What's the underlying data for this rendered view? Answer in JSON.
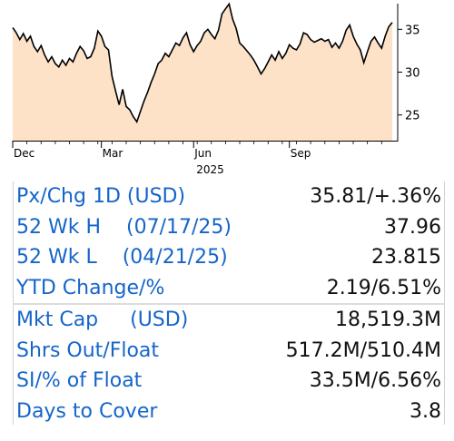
{
  "chart_data": {
    "type": "area",
    "x_tick_labels": [
      "Dec",
      "Mar",
      "Jun",
      "Sep"
    ],
    "x_year_label": "2025",
    "y_ticks": [
      25,
      30,
      35
    ],
    "ylim": [
      22,
      38
    ],
    "fill_color": "#fde2c8",
    "line_color": "#000000",
    "series": [
      {
        "values": [
          35.2,
          34.6,
          33.8,
          34.5,
          33.6,
          34.2,
          33.0,
          32.4,
          33.1,
          32.0,
          31.2,
          31.8,
          31.0,
          30.6,
          31.4,
          30.8,
          31.6,
          31.2,
          32.2,
          33.0,
          32.5,
          31.6,
          31.8,
          32.8,
          34.8,
          34.2,
          33.0,
          32.6,
          29.5,
          27.8,
          26.2,
          28.0,
          26.0,
          25.6,
          24.8,
          24.2,
          25.4,
          26.6,
          27.6,
          28.8,
          29.8,
          31.0,
          31.4,
          32.2,
          31.8,
          32.6,
          33.4,
          33.1,
          34.0,
          34.6,
          33.2,
          32.4,
          33.1,
          33.6,
          34.6,
          35.0,
          34.4,
          33.9,
          34.9,
          36.8,
          37.4,
          37.96,
          36.2,
          35.1,
          33.4,
          33.0,
          32.5,
          32.0,
          31.4,
          30.6,
          29.8,
          30.4,
          31.2,
          32.0,
          31.4,
          32.4,
          31.6,
          32.2,
          33.2,
          32.8,
          32.6,
          33.3,
          34.6,
          34.4,
          33.8,
          33.5,
          33.7,
          33.9,
          33.6,
          33.8,
          32.9,
          33.4,
          32.8,
          33.6,
          34.9,
          35.5,
          34.2,
          33.3,
          32.6,
          31.1,
          32.4,
          33.6,
          34.1,
          33.4,
          32.8,
          34.2,
          35.3,
          35.81
        ]
      }
    ]
  },
  "stats": [
    {
      "label": "Px/Chg 1D (USD)",
      "value": "35.81/+.36%"
    },
    {
      "label": "52 Wk H    (07/17/25)",
      "value": "37.96"
    },
    {
      "label": "52 Wk L    (04/21/25)",
      "value": "23.815"
    },
    {
      "label": "YTD Change/%",
      "value": "2.19/6.51%"
    },
    {
      "label": "Mkt Cap     (USD)",
      "value": "18,519.3M"
    },
    {
      "label": "Shrs Out/Float",
      "value": "517.2M/510.4M"
    },
    {
      "label": "SI/% of Float",
      "value": "33.5M/6.56%"
    },
    {
      "label": "Days to Cover",
      "value": "3.8"
    }
  ]
}
